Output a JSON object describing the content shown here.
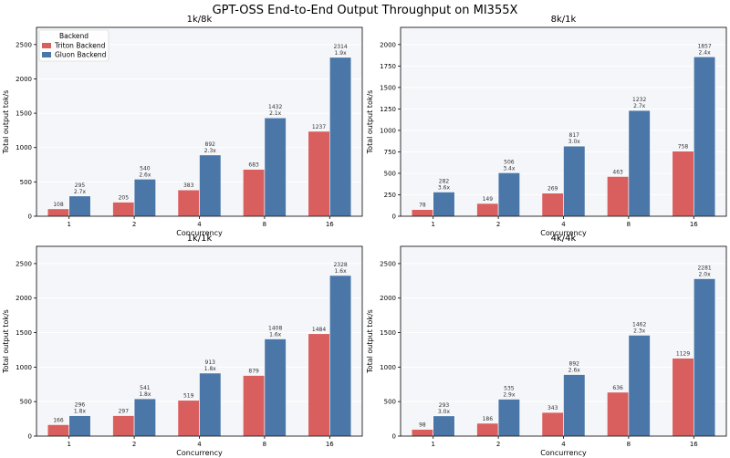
{
  "figure": {
    "title": "GPT-OSS End-to-End Output Throughput on MI355X"
  },
  "colors": {
    "triton": "#d95f5f",
    "gluon": "#4a77a8",
    "plot_bg": "#f4f6f9",
    "grid": "#ffffff"
  },
  "legend": {
    "title": "Backend",
    "location": "upper left of first subplot",
    "entries": [
      "Triton Backend",
      "Gluon Backend"
    ]
  },
  "chart_data": [
    {
      "type": "bar",
      "title": "1k/8k",
      "xlabel": "Concurrency",
      "ylabel": "Total output tok/s",
      "categories": [
        "1",
        "2",
        "4",
        "8",
        "16"
      ],
      "ylim": [
        0,
        2750
      ],
      "yticks": [
        0,
        500,
        1000,
        1500,
        2000,
        2500
      ],
      "grid": true,
      "series": [
        {
          "name": "Triton Backend",
          "values": [
            108,
            205,
            383,
            683,
            1237
          ]
        },
        {
          "name": "Gluon Backend",
          "values": [
            295,
            540,
            892,
            1432,
            2314
          ],
          "speedup_labels": [
            "2.7x",
            "2.6x",
            "2.3x",
            "2.1x",
            "1.9x"
          ]
        }
      ]
    },
    {
      "type": "bar",
      "title": "8k/1k",
      "xlabel": "Concurrency",
      "ylabel": "Total output tok/s",
      "categories": [
        "1",
        "2",
        "4",
        "8",
        "16"
      ],
      "ylim": [
        0,
        2200
      ],
      "yticks": [
        0,
        250,
        500,
        750,
        1000,
        1250,
        1500,
        1750,
        2000
      ],
      "grid": true,
      "series": [
        {
          "name": "Triton Backend",
          "values": [
            78,
            149,
            269,
            463,
            758
          ]
        },
        {
          "name": "Gluon Backend",
          "values": [
            282,
            506,
            817,
            1232,
            1857
          ],
          "speedup_labels": [
            "3.6x",
            "3.4x",
            "3.0x",
            "2.7x",
            "2.4x"
          ]
        }
      ]
    },
    {
      "type": "bar",
      "title": "1k/1k",
      "xlabel": "Concurrency",
      "ylabel": "Total output tok/s",
      "categories": [
        "1",
        "2",
        "4",
        "8",
        "16"
      ],
      "ylim": [
        0,
        2750
      ],
      "yticks": [
        0,
        500,
        1000,
        1500,
        2000,
        2500
      ],
      "grid": true,
      "series": [
        {
          "name": "Triton Backend",
          "values": [
            166,
            297,
            519,
            879,
            1484
          ]
        },
        {
          "name": "Gluon Backend",
          "values": [
            296,
            541,
            913,
            1408,
            2328
          ],
          "speedup_labels": [
            "1.8x",
            "1.8x",
            "1.8x",
            "1.6x",
            "1.6x"
          ]
        }
      ]
    },
    {
      "type": "bar",
      "title": "4k/4k",
      "xlabel": "Concurrency",
      "ylabel": "Total output tok/s",
      "categories": [
        "1",
        "2",
        "4",
        "8",
        "16"
      ],
      "ylim": [
        0,
        2750
      ],
      "yticks": [
        0,
        500,
        1000,
        1500,
        2000,
        2500
      ],
      "grid": true,
      "series": [
        {
          "name": "Triton Backend",
          "values": [
            98,
            186,
            343,
            636,
            1129
          ]
        },
        {
          "name": "Gluon Backend",
          "values": [
            293,
            535,
            892,
            1462,
            2281
          ],
          "speedup_labels": [
            "3.0x",
            "2.9x",
            "2.6x",
            "2.3x",
            "2.0x"
          ]
        }
      ]
    }
  ]
}
